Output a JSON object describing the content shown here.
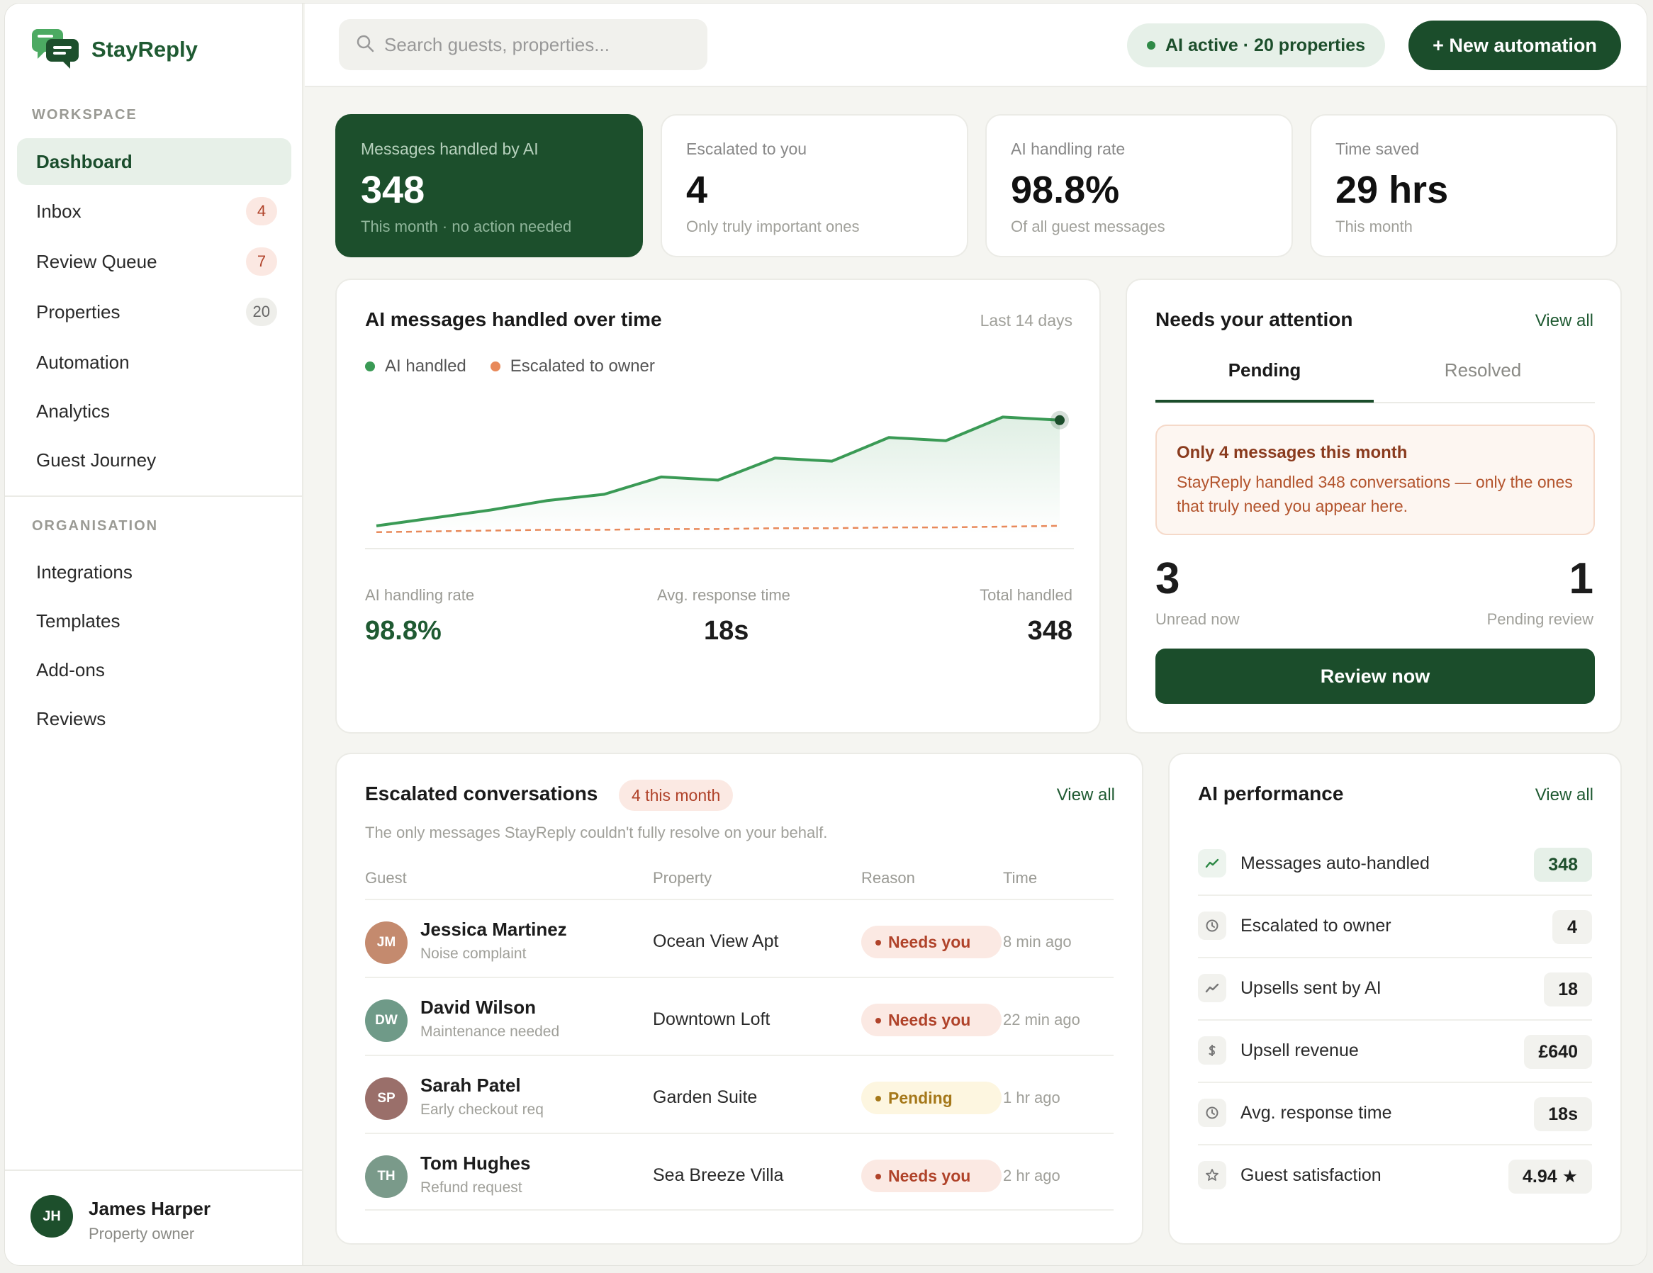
{
  "brand": {
    "name": "StayReply"
  },
  "sidebar": {
    "workspace_label": "WORKSPACE",
    "items": [
      {
        "label": "Dashboard"
      },
      {
        "label": "Inbox",
        "badge": "4"
      },
      {
        "label": "Review Queue",
        "badge": "7"
      },
      {
        "label": "Properties",
        "badge": "20"
      },
      {
        "label": "Automation"
      },
      {
        "label": "Analytics"
      },
      {
        "label": "Guest Journey"
      }
    ],
    "org_label": "ORGANISATION",
    "org_items": [
      {
        "label": "Integrations"
      },
      {
        "label": "Templates"
      },
      {
        "label": "Add-ons"
      },
      {
        "label": "Reviews"
      }
    ],
    "user": {
      "initials": "JH",
      "name": "James Harper",
      "role": "Property owner"
    }
  },
  "topbar": {
    "search_placeholder": "Search guests, properties...",
    "status": "AI active · 20 properties",
    "new_button": "+ New automation"
  },
  "stats": [
    {
      "label": "Messages handled by AI",
      "value": "348",
      "sub": "This month · no action needed"
    },
    {
      "label": "Escalated to you",
      "value": "4",
      "sub": "Only truly important ones"
    },
    {
      "label": "AI handling rate",
      "value": "98.8%",
      "sub": "Of all guest messages"
    },
    {
      "label": "Time saved",
      "value": "29 hrs",
      "sub": "This month"
    }
  ],
  "chart_card": {
    "title": "AI messages handled over time",
    "range": "Last 14 days",
    "legend": [
      "AI handled",
      "Escalated to owner"
    ],
    "kpis": [
      {
        "label": "AI handling rate",
        "value": "98.8%"
      },
      {
        "label": "Avg. response time",
        "value": "18s"
      },
      {
        "label": "Total handled",
        "value": "348"
      }
    ]
  },
  "chart_data": {
    "type": "line",
    "x": [
      1,
      2,
      3,
      4,
      5,
      6,
      7,
      8,
      9,
      10,
      11,
      12,
      13
    ],
    "series": [
      {
        "name": "AI handled",
        "values": [
          5,
          10,
          15,
          21,
          25,
          36,
          34,
          48,
          46,
          61,
          59,
          74,
          72
        ]
      },
      {
        "name": "Escalated to owner",
        "values": [
          1,
          1.5,
          2,
          2.5,
          2.5,
          3,
          3,
          3.5,
          3.5,
          4,
          4,
          4.5,
          5
        ]
      }
    ],
    "ylim": [
      0,
      80
    ],
    "colors": [
      "#3a9a55",
      "#e8895a"
    ],
    "grid": false
  },
  "attention": {
    "title": "Needs your attention",
    "view_all": "View all",
    "tabs": [
      "Pending",
      "Resolved"
    ],
    "notice_title": "Only 4 messages this month",
    "notice_text": "StayReply handled 348 conversations — only the ones that truly need you appear here.",
    "unread_value": "3",
    "unread_label": "Unread now",
    "pending_value": "1",
    "pending_label": "Pending review",
    "button": "Review now"
  },
  "escalated": {
    "title": "Escalated conversations",
    "badge": "4 this month",
    "view_all": "View all",
    "subtitle": "The only messages StayReply couldn't fully resolve on your behalf.",
    "columns": [
      "Guest",
      "Property",
      "Reason",
      "Time"
    ],
    "rows": [
      {
        "initials": "JM",
        "name": "Jessica Martinez",
        "issue": "Noise complaint",
        "property": "Ocean View Apt",
        "reason": "Needs you",
        "time": "8 min ago",
        "color": "#c48a6e"
      },
      {
        "initials": "DW",
        "name": "David Wilson",
        "issue": "Maintenance needed",
        "property": "Downtown Loft",
        "reason": "Needs you",
        "time": "22 min ago",
        "color": "#6f9a88"
      },
      {
        "initials": "SP",
        "name": "Sarah Patel",
        "issue": "Early checkout req",
        "property": "Garden Suite",
        "reason": "Pending",
        "time": "1 hr ago",
        "color": "#9a6f6a"
      },
      {
        "initials": "TH",
        "name": "Tom Hughes",
        "issue": "Refund request",
        "property": "Sea Breeze Villa",
        "reason": "Needs you",
        "time": "2 hr ago",
        "color": "#7a9a8a"
      }
    ]
  },
  "performance": {
    "title": "AI performance",
    "view_all": "View all",
    "rows": [
      {
        "icon": "trend-up-icon",
        "label": "Messages auto-handled",
        "value": "348"
      },
      {
        "icon": "clock-icon",
        "label": "Escalated to owner",
        "value": "4"
      },
      {
        "icon": "trend-up-icon",
        "label": "Upsells sent by AI",
        "value": "18"
      },
      {
        "icon": "currency-icon",
        "label": "Upsell revenue",
        "value": "£640"
      },
      {
        "icon": "clock-icon",
        "label": "Avg. response time",
        "value": "18s"
      },
      {
        "icon": "star-icon",
        "label": "Guest satisfaction",
        "value": "4.94 ★"
      }
    ]
  }
}
